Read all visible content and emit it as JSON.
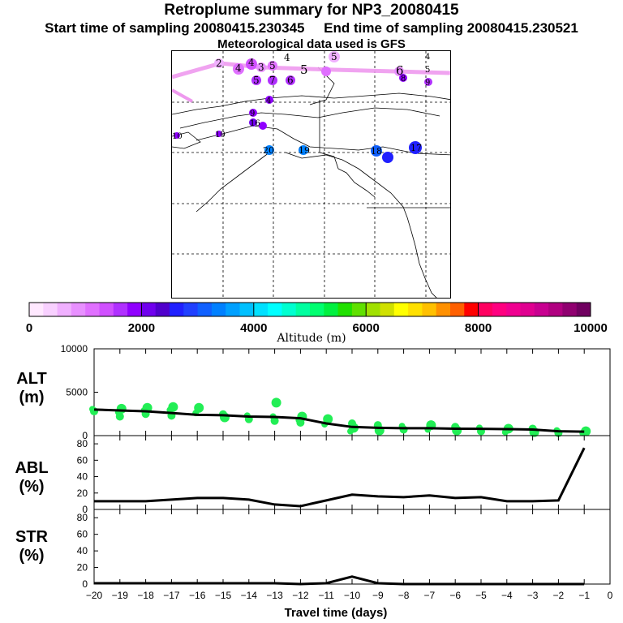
{
  "header": {
    "title": "Retroplume summary for NP3_20080415",
    "start_sampling": "Start time of sampling 20080415.230345",
    "end_sampling": "End time of sampling 20080415.230521",
    "met_data": "Meteorological data used is GFS"
  },
  "colorbar": {
    "title": "Altitude  (m)",
    "ticks": [
      "0",
      "2000",
      "4000",
      "6000",
      "8000",
      "10000"
    ],
    "min": 0,
    "max": 10000,
    "colors": [
      "#ffe8ff",
      "#f8d0ff",
      "#f0b0ff",
      "#e890ff",
      "#e070ff",
      "#d050ff",
      "#b030ff",
      "#9000ff",
      "#7000ee",
      "#5000cc",
      "#2020ff",
      "#2040ff",
      "#1060ff",
      "#0080ff",
      "#00a0ff",
      "#00c0ff",
      "#00e0ff",
      "#00ffff",
      "#00ffd0",
      "#00ffa0",
      "#00ff70",
      "#00f040",
      "#20e000",
      "#60e000",
      "#a0e000",
      "#d0e000",
      "#ffff00",
      "#ffe000",
      "#ffc000",
      "#ff9000",
      "#ff6000",
      "#ff0000",
      "#ff0060",
      "#ff0080",
      "#f00090",
      "#e00090",
      "#c80090",
      "#b00080",
      "#900070",
      "#700060"
    ]
  },
  "map": {
    "trajectory_labels": [
      "2",
      "4",
      "4",
      "3",
      "4",
      "5",
      "5",
      "5",
      "6",
      "4",
      "5",
      "6",
      "7",
      "8",
      "9",
      "9",
      "10",
      "10",
      "19",
      "18",
      "17",
      "16",
      "20",
      "5",
      "4"
    ]
  },
  "chart_data": [
    {
      "type": "scatter+line",
      "panel": "ALT",
      "ylabel": "ALT\n(m)",
      "ylim": [
        0,
        10000
      ],
      "yticks": [
        "0",
        "5000",
        "10000"
      ],
      "x": [
        -20,
        -19,
        -18,
        -17,
        -16,
        -15,
        -14,
        -13,
        -12,
        -11,
        -10,
        -9,
        -8,
        -7,
        -6,
        -5,
        -4,
        -3,
        -2,
        -1
      ],
      "median_line": [
        3000,
        2900,
        2800,
        2600,
        2400,
        2350,
        2200,
        2150,
        2000,
        1400,
        1000,
        900,
        850,
        850,
        800,
        780,
        750,
        700,
        500,
        450
      ],
      "scatter_points": [
        {
          "x": -20,
          "y": 3050
        },
        {
          "x": -20,
          "y": 2800
        },
        {
          "x": -19,
          "y": 3100
        },
        {
          "x": -19,
          "y": 2700
        },
        {
          "x": -19,
          "y": 2200
        },
        {
          "x": -18,
          "y": 3200
        },
        {
          "x": -18,
          "y": 2900
        },
        {
          "x": -18,
          "y": 2500
        },
        {
          "x": -17,
          "y": 3300
        },
        {
          "x": -17,
          "y": 2950
        },
        {
          "x": -17,
          "y": 2300
        },
        {
          "x": -16,
          "y": 3200
        },
        {
          "x": -16,
          "y": 2600
        },
        {
          "x": -15,
          "y": 2450
        },
        {
          "x": -15,
          "y": 2100
        },
        {
          "x": -14,
          "y": 2300
        },
        {
          "x": -14,
          "y": 1900
        },
        {
          "x": -13,
          "y": 3800
        },
        {
          "x": -13,
          "y": 2200
        },
        {
          "x": -13,
          "y": 1700
        },
        {
          "x": -12,
          "y": 2200
        },
        {
          "x": -12,
          "y": 1800
        },
        {
          "x": -12,
          "y": 1500
        },
        {
          "x": -11,
          "y": 1900
        },
        {
          "x": -11,
          "y": 1300
        },
        {
          "x": -10,
          "y": 1400
        },
        {
          "x": -10,
          "y": 900
        },
        {
          "x": -10,
          "y": 500
        },
        {
          "x": -9,
          "y": 1200
        },
        {
          "x": -9,
          "y": 600
        },
        {
          "x": -8,
          "y": 1100
        },
        {
          "x": -8,
          "y": 700
        },
        {
          "x": -7,
          "y": 1200
        },
        {
          "x": -7,
          "y": 700
        },
        {
          "x": -6,
          "y": 1000
        },
        {
          "x": -6,
          "y": 600
        },
        {
          "x": -5,
          "y": 900
        },
        {
          "x": -5,
          "y": 500
        },
        {
          "x": -4,
          "y": 800
        },
        {
          "x": -4,
          "y": 400
        },
        {
          "x": -3,
          "y": 800
        },
        {
          "x": -3,
          "y": 400
        },
        {
          "x": -2,
          "y": 600
        },
        {
          "x": -2,
          "y": 300
        },
        {
          "x": -1,
          "y": 500
        },
        {
          "x": -1,
          "y": 300
        }
      ],
      "line_color": "#000000",
      "point_color": "#22ee55"
    },
    {
      "type": "line",
      "panel": "ABL",
      "ylabel": "ABL\n(%)",
      "ylim": [
        0,
        90
      ],
      "yticks": [
        "0",
        "20",
        "40",
        "60",
        "80"
      ],
      "x": [
        -20,
        -19,
        -18,
        -17,
        -16,
        -15,
        -14,
        -13,
        -12,
        -11,
        -10,
        -9,
        -8,
        -7,
        -6,
        -5,
        -4,
        -3,
        -2,
        -1
      ],
      "values": [
        10,
        10,
        10,
        12,
        14,
        14,
        12,
        6,
        4,
        11,
        18,
        16,
        15,
        17,
        14,
        15,
        10,
        10,
        11,
        75
      ]
    },
    {
      "type": "line",
      "panel": "STR",
      "ylabel": "STR\n(%)",
      "ylim": [
        0,
        90
      ],
      "yticks": [
        "0",
        "20",
        "40",
        "60",
        "80"
      ],
      "x": [
        -20,
        -19,
        -18,
        -17,
        -16,
        -15,
        -14,
        -13,
        -12,
        -11,
        -10,
        -9,
        -8,
        -7,
        -6,
        -5,
        -4,
        -3,
        -2,
        -1
      ],
      "values": [
        1,
        1,
        1,
        1,
        1,
        1,
        1,
        1,
        0,
        1,
        9,
        1,
        0,
        0,
        0,
        0,
        0,
        0,
        0,
        0
      ]
    }
  ],
  "xaxis": {
    "label": "Travel time (days)",
    "min": -20,
    "max": 0,
    "ticks": [
      "−20",
      "−19",
      "−18",
      "−17",
      "−16",
      "−15",
      "−14",
      "−13",
      "−12",
      "−11",
      "−10",
      "−9",
      "−8",
      "−7",
      "−6",
      "−5",
      "−4",
      "−3",
      "−2",
      "−1",
      "0"
    ]
  },
  "colors": {
    "line": "#000000",
    "points": "#22ee55",
    "plume": "#ee99ee"
  }
}
